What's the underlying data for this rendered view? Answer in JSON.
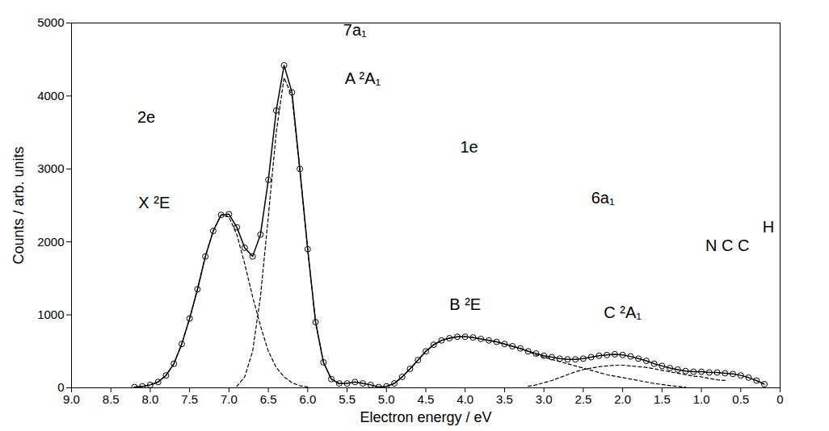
{
  "chart_data": {
    "type": "line",
    "xlabel": "Electron energy / eV",
    "ylabel": "Counts / arb. units",
    "xlim": [
      9,
      0
    ],
    "ylim": [
      0,
      5000
    ],
    "xticks": [
      {
        "value": 9,
        "label": "9.0"
      },
      8.5,
      {
        "value": 8,
        "label": "8.0"
      },
      7.5,
      {
        "value": 7,
        "label": "7.0"
      },
      6.5,
      {
        "value": 6,
        "label": "6.0"
      },
      5.5,
      {
        "value": 5,
        "label": "5.0"
      },
      4.5,
      {
        "value": 4,
        "label": "4.0"
      },
      3.5,
      {
        "value": 3,
        "label": "3.0"
      },
      2.5,
      {
        "value": 2,
        "label": "2.0"
      },
      1.5,
      {
        "value": 1,
        "label": "1.0"
      },
      0.5,
      0
    ],
    "yticks": [
      0,
      1000,
      2000,
      3000,
      4000,
      5000
    ],
    "grid": false,
    "x": [
      8.2,
      8.1,
      8.0,
      7.9,
      7.8,
      7.7,
      7.6,
      7.5,
      7.4,
      7.3,
      7.2,
      7.1,
      7.0,
      6.9,
      6.8,
      6.7,
      6.6,
      6.5,
      6.4,
      6.3,
      6.2,
      6.1,
      6.0,
      5.9,
      5.8,
      5.7,
      5.6,
      5.5,
      5.4,
      5.3,
      5.2,
      5.1,
      5.0,
      4.9,
      4.8,
      4.7,
      4.6,
      4.5,
      4.4,
      4.3,
      4.2,
      4.1,
      4.0,
      3.9,
      3.8,
      3.7,
      3.6,
      3.5,
      3.4,
      3.3,
      3.2,
      3.1,
      3.0,
      2.9,
      2.8,
      2.7,
      2.6,
      2.5,
      2.4,
      2.3,
      2.2,
      2.1,
      2.0,
      1.9,
      1.8,
      1.7,
      1.6,
      1.5,
      1.4,
      1.3,
      1.2,
      1.1,
      1.0,
      0.9,
      0.8,
      0.7,
      0.6,
      0.5,
      0.4,
      0.3,
      0.2
    ],
    "series": [
      {
        "color": "#000000",
        "marker": "circle",
        "line_style": "solid",
        "values": [
          10,
          20,
          40,
          80,
          170,
          330,
          600,
          950,
          1350,
          1800,
          2150,
          2370,
          2380,
          2200,
          1920,
          1800,
          2100,
          2850,
          3800,
          4420,
          4050,
          3000,
          1900,
          900,
          350,
          120,
          60,
          60,
          80,
          60,
          40,
          10,
          20,
          60,
          150,
          260,
          380,
          500,
          590,
          650,
          680,
          700,
          700,
          690,
          670,
          650,
          630,
          600,
          570,
          540,
          500,
          470,
          440,
          420,
          400,
          390,
          390,
          400,
          420,
          440,
          450,
          460,
          450,
          430,
          400,
          370,
          330,
          300,
          270,
          250,
          230,
          220,
          220,
          210,
          210,
          200,
          190,
          170,
          140,
          100,
          50
        ]
      },
      {
        "color": "#000000",
        "marker": "none",
        "line_style": "dashed",
        "values": [
          10,
          20,
          40,
          80,
          170,
          330,
          600,
          950,
          1350,
          1800,
          2150,
          2370,
          2340,
          2100,
          1700,
          1250,
          850,
          500,
          280,
          150,
          70,
          30,
          10,
          null,
          null,
          null,
          null,
          null,
          null,
          null,
          null,
          null,
          null,
          null,
          null,
          null,
          null,
          null,
          null,
          null,
          null,
          null,
          null,
          null,
          null,
          null,
          null,
          null,
          null,
          null,
          null,
          null,
          null,
          null,
          null,
          null,
          null,
          null,
          null,
          null,
          null,
          null,
          null,
          null,
          null,
          null,
          null,
          null,
          null,
          null,
          null,
          null,
          null,
          null,
          null,
          null,
          null,
          null,
          null,
          null,
          null
        ]
      },
      {
        "color": "#000000",
        "marker": "none",
        "line_style": "dashed",
        "values": [
          null,
          null,
          null,
          null,
          null,
          null,
          null,
          null,
          null,
          null,
          null,
          null,
          null,
          20,
          150,
          500,
          1250,
          2350,
          3500,
          4250,
          4000,
          2980,
          1890,
          900,
          350,
          120,
          50,
          null,
          null,
          null,
          null,
          null,
          null,
          null,
          null,
          null,
          null,
          null,
          null,
          null,
          null,
          null,
          null,
          null,
          null,
          null,
          null,
          null,
          null,
          null,
          null,
          null,
          null,
          null,
          null,
          null,
          null,
          null,
          null,
          null,
          null,
          null,
          null,
          null,
          null,
          null,
          null,
          null,
          null,
          null,
          null,
          null,
          null,
          null,
          null,
          null,
          null,
          null,
          null,
          null,
          null
        ]
      },
      {
        "color": "#000000",
        "marker": "none",
        "line_style": "dashed",
        "values": [
          null,
          null,
          null,
          null,
          null,
          null,
          null,
          null,
          null,
          null,
          null,
          null,
          null,
          null,
          null,
          null,
          null,
          null,
          null,
          null,
          null,
          null,
          null,
          null,
          null,
          null,
          null,
          null,
          null,
          null,
          null,
          null,
          20,
          60,
          150,
          260,
          380,
          500,
          590,
          650,
          680,
          700,
          700,
          690,
          670,
          650,
          630,
          600,
          570,
          540,
          500,
          450,
          420,
          390,
          360,
          330,
          300,
          270,
          240,
          210,
          180,
          160,
          140,
          120,
          100,
          80,
          60,
          45,
          30,
          20,
          10,
          null,
          null,
          null,
          null,
          null,
          null,
          null,
          null,
          null,
          null
        ]
      },
      {
        "color": "#000000",
        "marker": "none",
        "line_style": "dashed",
        "values": [
          null,
          null,
          null,
          null,
          null,
          null,
          null,
          null,
          null,
          null,
          null,
          null,
          null,
          null,
          null,
          null,
          null,
          null,
          null,
          null,
          null,
          null,
          null,
          null,
          null,
          null,
          null,
          null,
          null,
          null,
          null,
          null,
          null,
          null,
          null,
          null,
          null,
          null,
          null,
          null,
          null,
          null,
          null,
          null,
          null,
          null,
          null,
          null,
          null,
          null,
          20,
          40,
          70,
          100,
          140,
          180,
          220,
          250,
          270,
          290,
          300,
          310,
          310,
          300,
          290,
          280,
          260,
          240,
          220,
          200,
          180,
          160,
          150,
          130,
          110,
          100,
          null,
          null,
          null,
          null,
          null
        ]
      }
    ],
    "annotations": [
      {
        "text": "2e",
        "x": 8.05,
        "y": 3700
      },
      {
        "text": "X ²E",
        "x": 7.95,
        "y": 2530
      },
      {
        "text": "7a₁",
        "x": 5.4,
        "y": 4900
      },
      {
        "text": "A ²A₁",
        "x": 5.3,
        "y": 4240
      },
      {
        "text": "1e",
        "x": 3.95,
        "y": 3300
      },
      {
        "text": "B ²E",
        "x": 4.0,
        "y": 1140
      },
      {
        "text": "6a₁",
        "x": 2.25,
        "y": 2600
      },
      {
        "text": "C ²A₁",
        "x": 2.0,
        "y": 1030
      },
      {
        "text": "N C C",
        "x": 0.67,
        "y": 1950
      },
      {
        "text": "H",
        "x": 0.15,
        "y": 2200
      }
    ]
  }
}
